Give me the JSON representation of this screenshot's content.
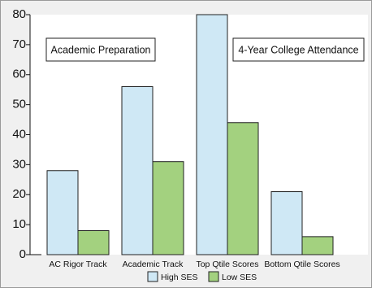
{
  "chart_data": {
    "type": "bar",
    "categories": [
      "AC Rigor Track",
      "Academic Track",
      "Top Qtile Scores",
      "Bottom Qtile Scores"
    ],
    "series": [
      {
        "name": "High SES",
        "values": [
          28,
          56,
          80,
          21
        ],
        "color": "#cfe8f5"
      },
      {
        "name": "Low SES",
        "values": [
          8,
          31,
          44,
          6
        ],
        "color": "#a3d17f"
      }
    ],
    "y_ticks": [
      "0",
      "10",
      "20",
      "30",
      "40",
      "50",
      "60",
      "70",
      "80"
    ],
    "ylim": [
      0,
      80
    ],
    "grid": false,
    "legend_position": "bottom",
    "section_labels": [
      "Academic Preparation",
      "4-Year College Attendance"
    ],
    "axis_color": "#111111",
    "bar_border_color": "#222222",
    "plot_background": "#ffffff"
  }
}
